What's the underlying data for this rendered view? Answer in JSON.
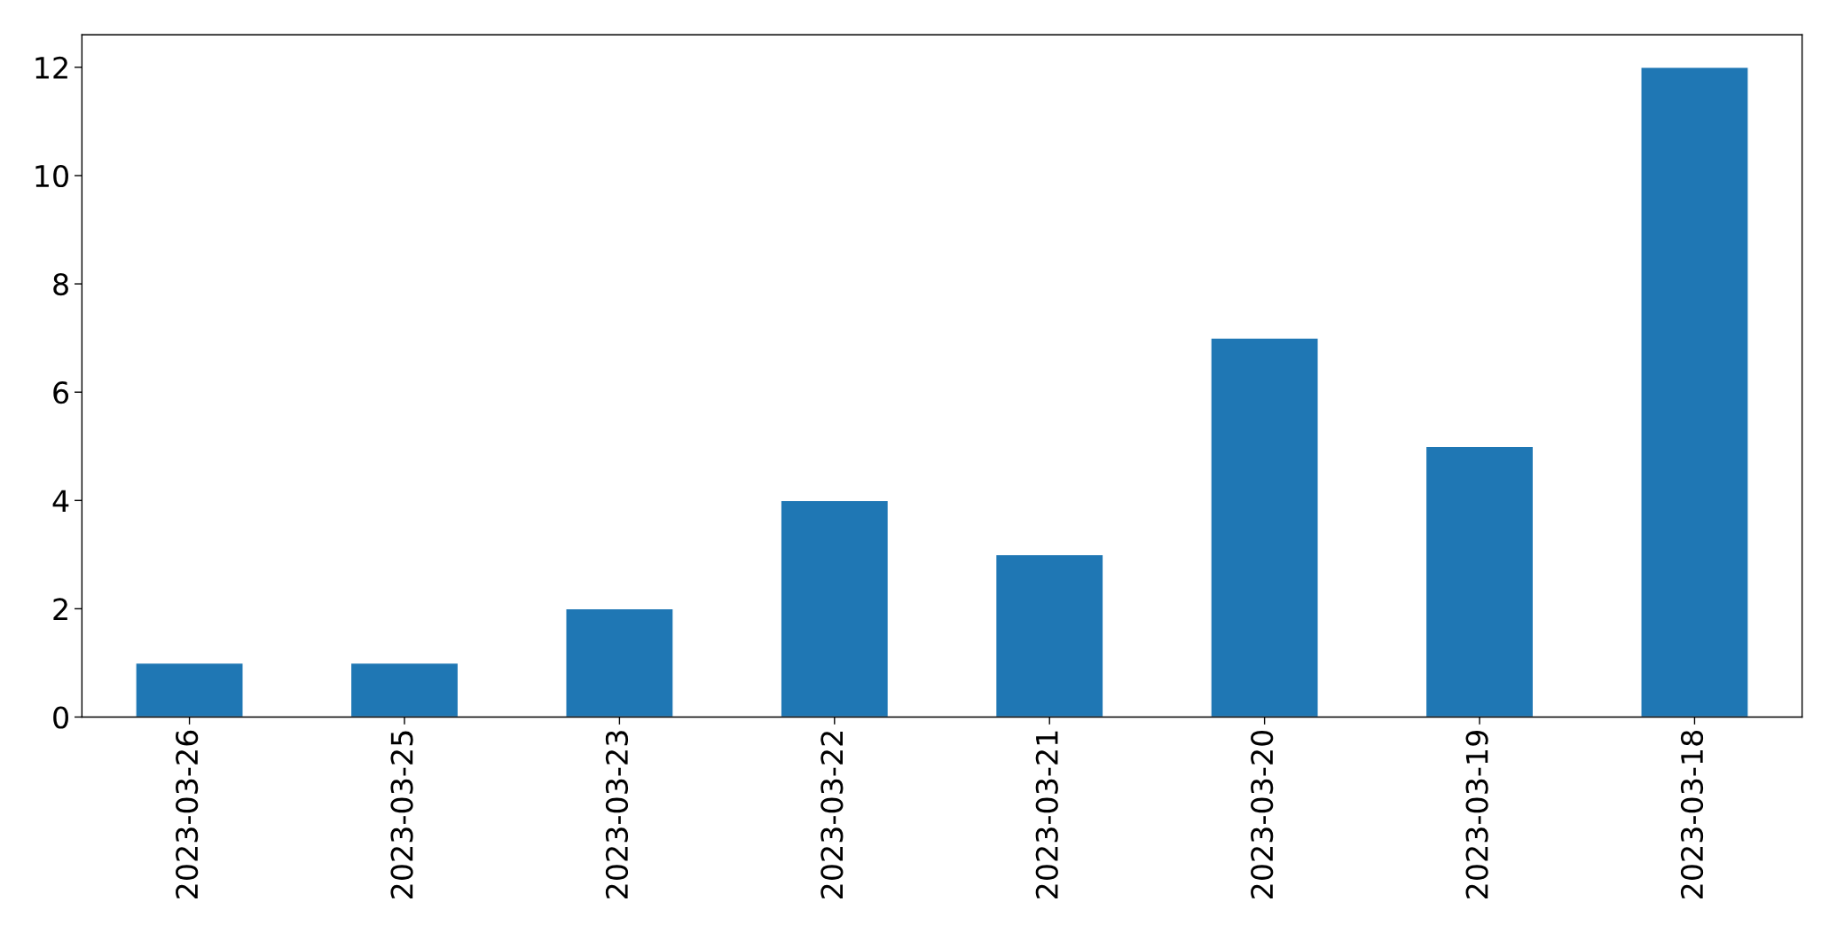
{
  "chart_data": {
    "type": "bar",
    "categories": [
      "2023-03-26",
      "2023-03-25",
      "2023-03-23",
      "2023-03-22",
      "2023-03-21",
      "2023-03-20",
      "2023-03-19",
      "2023-03-18"
    ],
    "values": [
      1,
      1,
      2,
      4,
      3,
      7,
      5,
      12
    ],
    "color": "#1f77b4",
    "ylim": [
      0,
      12.6
    ],
    "yticks": [
      0,
      2,
      4,
      6,
      8,
      10,
      12
    ],
    "grid": false
  }
}
